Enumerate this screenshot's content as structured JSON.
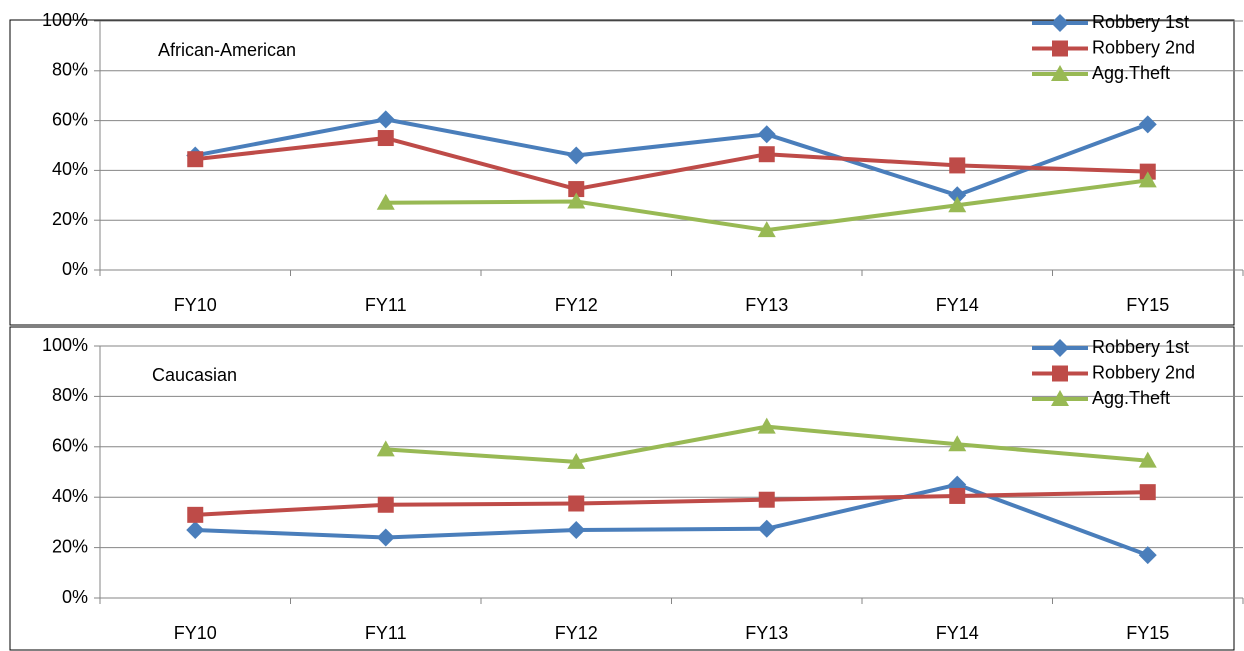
{
  "chart_data": [
    {
      "type": "line",
      "annotation": "African-American",
      "categories": [
        "FY10",
        "FY11",
        "FY12",
        "FY13",
        "FY14",
        "FY15"
      ],
      "series": [
        {
          "name": "Robbery 1st",
          "color": "#4a7ebb",
          "marker": "diamond",
          "values": [
            46,
            60.5,
            46,
            54.5,
            30,
            58.5
          ]
        },
        {
          "name": "Robbery 2nd",
          "color": "#be4b48",
          "marker": "square",
          "values": [
            44.5,
            53,
            32.5,
            46.5,
            42,
            39.5
          ]
        },
        {
          "name": "Agg.Theft",
          "color": "#98b954",
          "marker": "triangle",
          "values": [
            null,
            27,
            27.5,
            16,
            26,
            36
          ]
        }
      ],
      "ylim": [
        0,
        100
      ],
      "yticks": [
        {
          "value": 0,
          "label": "0%"
        },
        {
          "value": 20,
          "label": "20%"
        },
        {
          "value": 40,
          "label": "40%"
        },
        {
          "value": 60,
          "label": "60%"
        },
        {
          "value": 80,
          "label": "80%"
        },
        {
          "value": 100,
          "label": "100%"
        }
      ],
      "grid": true,
      "legend": "top-right"
    },
    {
      "type": "line",
      "annotation": "Caucasian",
      "categories": [
        "FY10",
        "FY11",
        "FY12",
        "FY13",
        "FY14",
        "FY15"
      ],
      "series": [
        {
          "name": "Robbery 1st",
          "color": "#4a7ebb",
          "marker": "diamond",
          "values": [
            27,
            24,
            27,
            27.5,
            45,
            17
          ]
        },
        {
          "name": "Robbery 2nd",
          "color": "#be4b48",
          "marker": "square",
          "values": [
            33,
            37,
            37.5,
            39,
            40.5,
            42
          ]
        },
        {
          "name": "Agg.Theft",
          "color": "#98b954",
          "marker": "triangle",
          "values": [
            null,
            59,
            54,
            68,
            61,
            54.5
          ]
        }
      ],
      "ylim": [
        0,
        100
      ],
      "yticks": [
        {
          "value": 0,
          "label": "0%"
        },
        {
          "value": 20,
          "label": "20%"
        },
        {
          "value": 40,
          "label": "40%"
        },
        {
          "value": 60,
          "label": "60%"
        },
        {
          "value": 80,
          "label": "80%"
        },
        {
          "value": 100,
          "label": "100%"
        }
      ],
      "grid": true,
      "legend": "top-right"
    }
  ]
}
